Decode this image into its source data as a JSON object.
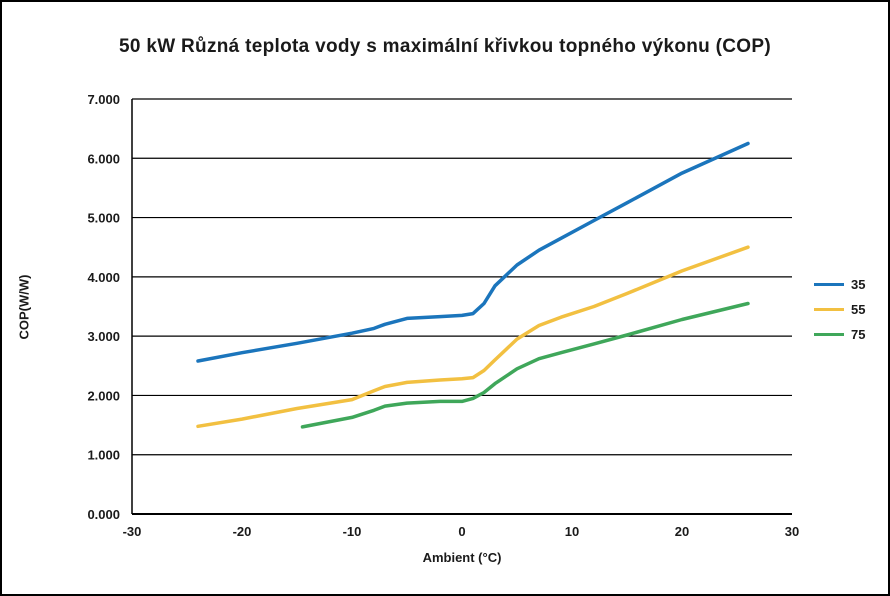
{
  "title": "50 kW Různá teplota vody s maximální křivkou topného výkonu (COP)",
  "chart_data": {
    "type": "line",
    "title": "50 kW Různá teplota vody s maximální křivkou topného výkonu (COP)",
    "xlabel": "Ambient (°C)",
    "ylabel": "COP(W/W)",
    "xlim": [
      -30,
      30
    ],
    "ylim": [
      0,
      7
    ],
    "x_ticks": [
      "-30",
      "-20",
      "-10",
      "0",
      "10",
      "20",
      "30"
    ],
    "y_ticks": [
      "0.000",
      "1.000",
      "2.000",
      "3.000",
      "4.000",
      "5.000",
      "6.000",
      "7.000"
    ],
    "grid": "horizontal-only",
    "legend_position": "right-center",
    "series": [
      {
        "name": "35",
        "color": "#1b75bc",
        "points": [
          [
            -24,
            2.58
          ],
          [
            -20,
            2.72
          ],
          [
            -15,
            2.88
          ],
          [
            -10,
            3.05
          ],
          [
            -8,
            3.13
          ],
          [
            -7,
            3.2
          ],
          [
            -5,
            3.3
          ],
          [
            -2,
            3.33
          ],
          [
            0,
            3.35
          ],
          [
            1,
            3.38
          ],
          [
            2,
            3.55
          ],
          [
            3,
            3.85
          ],
          [
            5,
            4.2
          ],
          [
            7,
            4.45
          ],
          [
            9,
            4.65
          ],
          [
            12,
            4.95
          ],
          [
            15,
            5.25
          ],
          [
            20,
            5.75
          ],
          [
            26,
            6.25
          ]
        ]
      },
      {
        "name": "55",
        "color": "#f2c041",
        "points": [
          [
            -24,
            1.48
          ],
          [
            -20,
            1.6
          ],
          [
            -15,
            1.78
          ],
          [
            -10,
            1.93
          ],
          [
            -8,
            2.08
          ],
          [
            -7,
            2.15
          ],
          [
            -5,
            2.22
          ],
          [
            -2,
            2.26
          ],
          [
            0,
            2.28
          ],
          [
            1,
            2.3
          ],
          [
            2,
            2.42
          ],
          [
            3,
            2.6
          ],
          [
            5,
            2.95
          ],
          [
            7,
            3.18
          ],
          [
            9,
            3.32
          ],
          [
            12,
            3.5
          ],
          [
            15,
            3.72
          ],
          [
            20,
            4.1
          ],
          [
            26,
            4.5
          ]
        ]
      },
      {
        "name": "75",
        "color": "#3fa75a",
        "points": [
          [
            -14.5,
            1.47
          ],
          [
            -10,
            1.63
          ],
          [
            -8,
            1.75
          ],
          [
            -7,
            1.82
          ],
          [
            -5,
            1.87
          ],
          [
            -2,
            1.9
          ],
          [
            0,
            1.9
          ],
          [
            1,
            1.95
          ],
          [
            2,
            2.05
          ],
          [
            3,
            2.2
          ],
          [
            5,
            2.45
          ],
          [
            7,
            2.62
          ],
          [
            9,
            2.72
          ],
          [
            12,
            2.87
          ],
          [
            15,
            3.02
          ],
          [
            20,
            3.28
          ],
          [
            26,
            3.55
          ]
        ]
      }
    ]
  }
}
